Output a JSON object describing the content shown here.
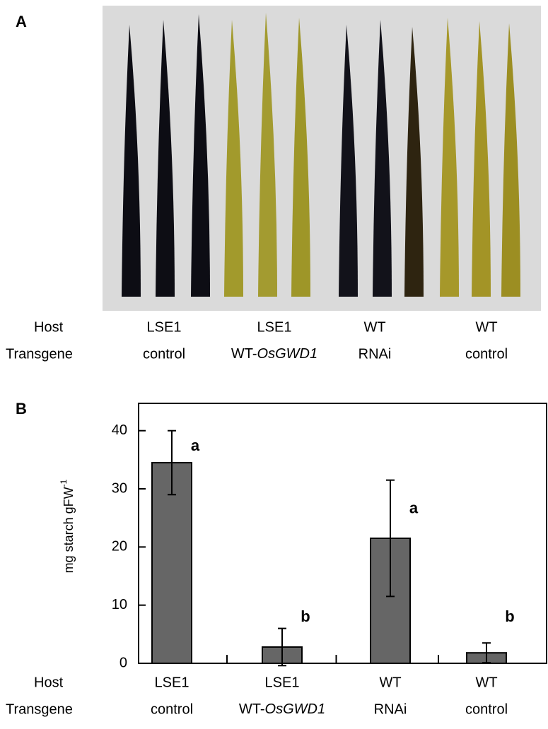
{
  "panel_a": {
    "label": "A",
    "row_labels": [
      "Host",
      "Transgene"
    ],
    "host": [
      "LSE1",
      "LSE1",
      "WT",
      "WT"
    ],
    "transgene": [
      "control",
      [
        "WT-",
        "OsGWD1"
      ],
      "RNAi",
      "control"
    ]
  },
  "chart_data": {
    "type": "bar",
    "panel_label": "B",
    "y_label": "mg starch gFW",
    "y_label_sup": "-1",
    "row_labels": [
      "Host",
      "Transgene"
    ],
    "categories": [
      "LSE1",
      "LSE1",
      "WT",
      "WT"
    ],
    "transgene": [
      "control",
      [
        "WT-",
        "OsGWD1"
      ],
      "RNAi",
      "control"
    ],
    "values": [
      34.5,
      2.8,
      21.5,
      1.8
    ],
    "errors": [
      5.5,
      3.2,
      10,
      1.7
    ],
    "significance": [
      "a",
      "b",
      "a",
      "b"
    ],
    "color": "#666666",
    "ylim": [
      0,
      44.7
    ],
    "yticks": [
      0,
      10,
      20,
      30,
      40
    ],
    "grid": false
  }
}
